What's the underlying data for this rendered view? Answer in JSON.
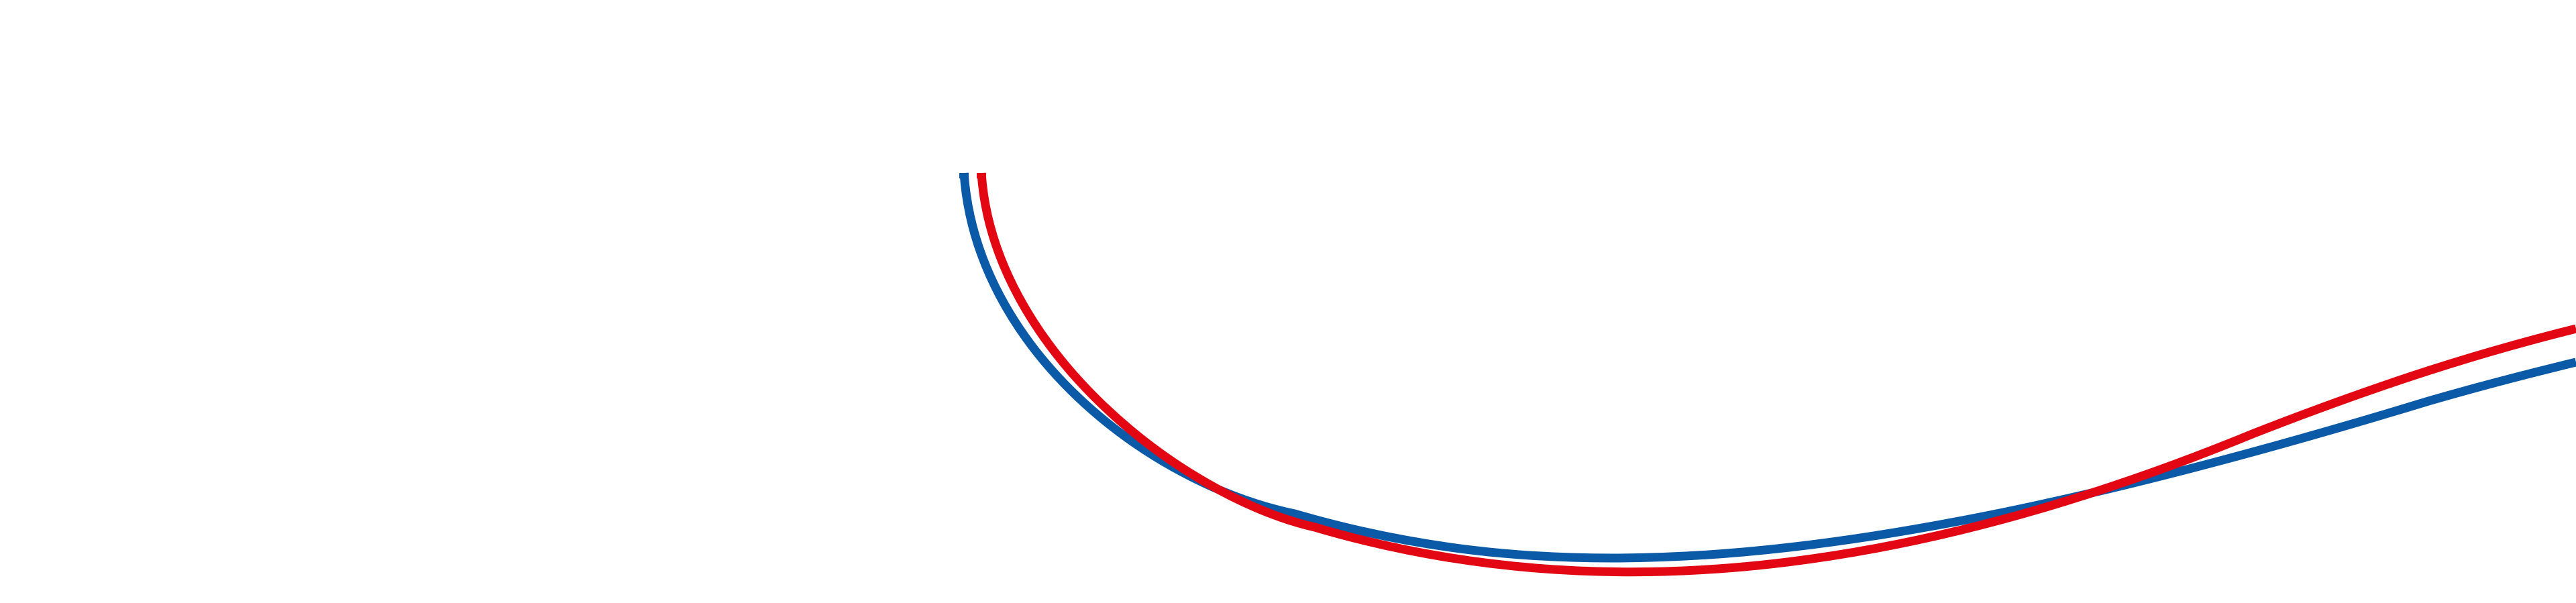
{
  "colors": {
    "background": "#ffffff",
    "blue_stroke": "#0a5aa8",
    "red_stroke": "#e30613"
  },
  "graphic": {
    "name": "decorative-blue-red-swoosh"
  }
}
